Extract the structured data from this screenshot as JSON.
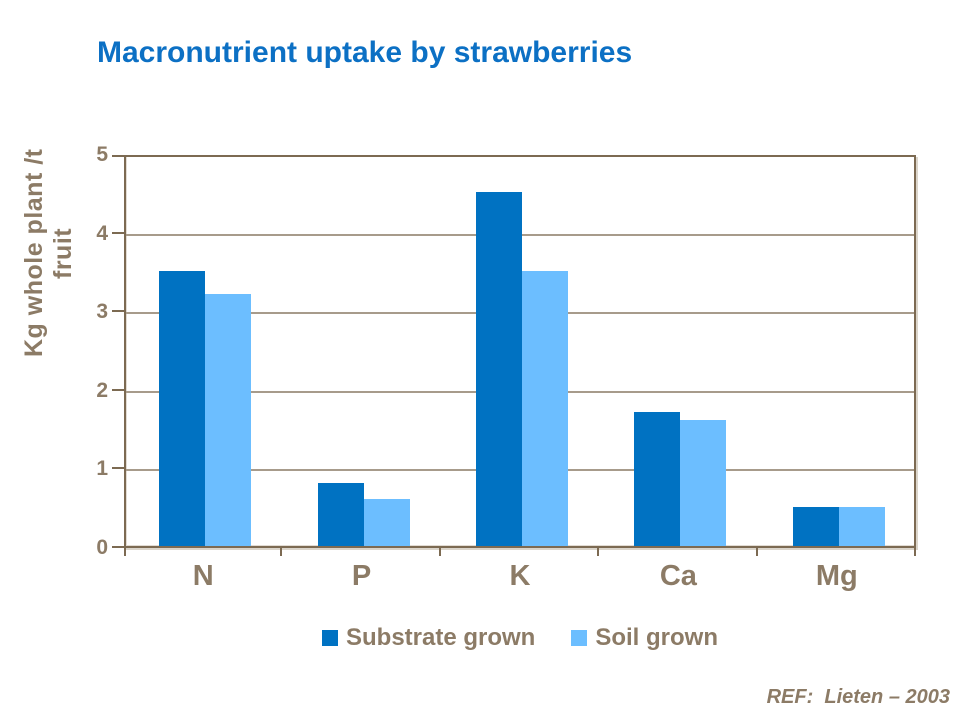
{
  "slide": {
    "title": "Macronutrient uptake by strawberries",
    "ref_note": "REF:  Lieten – 2003"
  },
  "chart_data": {
    "type": "bar",
    "title": "Macronutrient uptake by strawberries",
    "categories": [
      "N",
      "P",
      "K",
      "Ca",
      "Mg"
    ],
    "series": [
      {
        "name": "Substrate grown",
        "color": "#0072C2",
        "values": [
          3.5,
          0.8,
          4.5,
          1.7,
          0.5
        ]
      },
      {
        "name": "Soil grown",
        "color": "#6CBEFF",
        "values": [
          3.2,
          0.6,
          3.5,
          1.6,
          0.5
        ]
      }
    ],
    "xlabel": "",
    "ylabel": "Kg whole plant /t fruit",
    "ylim": [
      0,
      5
    ],
    "yticks": [
      0,
      1,
      2,
      3,
      4,
      5
    ],
    "grid": true,
    "legend_position": "bottom"
  },
  "colors": {
    "title_text": "#0C70C4",
    "axis_text": "#8C7B66",
    "axis_line": "#7C6A52",
    "gridline": "#A79B8B",
    "background": "#FFFFFF"
  }
}
